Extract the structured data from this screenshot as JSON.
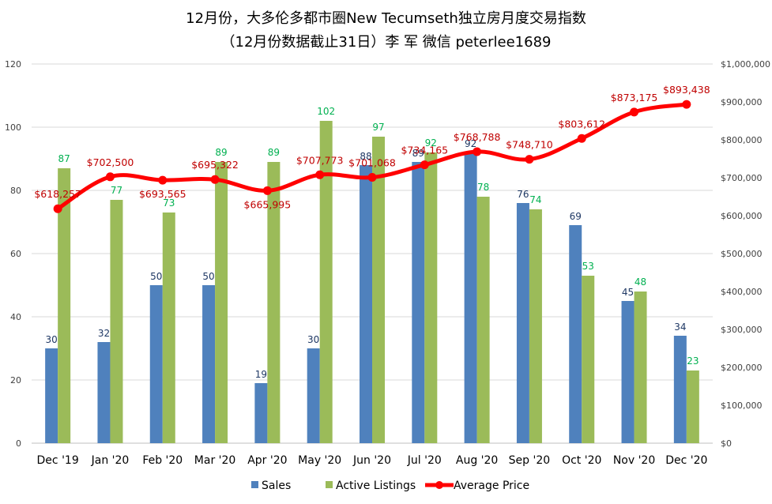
{
  "chart_data": {
    "type": "bar",
    "title": "12月份，大多伦多都市圈New Tecumseth独立房月度交易指数",
    "subtitle": "（12月份数据截止31日）李 军  微信  peterlee1689",
    "categories": [
      "Dec '19",
      "Jan '20",
      "Feb '20",
      "Mar '20",
      "Apr '20",
      "May '20",
      "Jun '20",
      "Jul '20",
      "Aug '20",
      "Sep '20",
      "Oct '20",
      "Nov '20",
      "Dec '20"
    ],
    "series": [
      {
        "name": "Sales",
        "type": "bar",
        "axis": "left",
        "color": "#4F81BD",
        "label_color": "#1F3864",
        "values": [
          30,
          32,
          50,
          50,
          19,
          30,
          88,
          89,
          92,
          76,
          69,
          45,
          34
        ],
        "labels": [
          "30",
          "32",
          "50",
          "50",
          "19",
          "30",
          "88",
          "89",
          "92",
          "76",
          "69",
          "45",
          "34"
        ]
      },
      {
        "name": "Active Listings",
        "type": "bar",
        "axis": "left",
        "color": "#9BBB59",
        "label_color": "#00B050",
        "values": [
          87,
          77,
          73,
          89,
          89,
          102,
          97,
          92,
          78,
          74,
          53,
          48,
          23
        ],
        "labels": [
          "87",
          "77",
          "73",
          "89",
          "89",
          "102",
          "97",
          "92",
          "78",
          "74",
          "53",
          "48",
          "23"
        ]
      },
      {
        "name": "Average Price",
        "type": "line",
        "axis": "right",
        "color": "#FF0000",
        "label_color": "#C00000",
        "values": [
          618257,
          702500,
          693565,
          695322,
          665995,
          707773,
          701068,
          734165,
          768788,
          748710,
          803612,
          873175,
          893438
        ],
        "labels": [
          "$618,257",
          "$702,500",
          "$693,565",
          "$695,322",
          "$665,995",
          "$707,773",
          "$701,068",
          "$734,165",
          "$768,788",
          "$748,710",
          "$803,612",
          "$873,175",
          "$893,438"
        ]
      }
    ],
    "y_left": {
      "min": 0,
      "max": 120,
      "ticks": [
        "0",
        "20",
        "40",
        "60",
        "80",
        "100",
        "120"
      ]
    },
    "y_right": {
      "min": 0,
      "max": 1000000,
      "ticks": [
        "$0",
        "$100,000",
        "$200,000",
        "$300,000",
        "$400,000",
        "$500,000",
        "$600,000",
        "$700,000",
        "$800,000",
        "$900,000",
        "$1,000,000"
      ]
    },
    "grid": true,
    "legend_position": "bottom"
  }
}
